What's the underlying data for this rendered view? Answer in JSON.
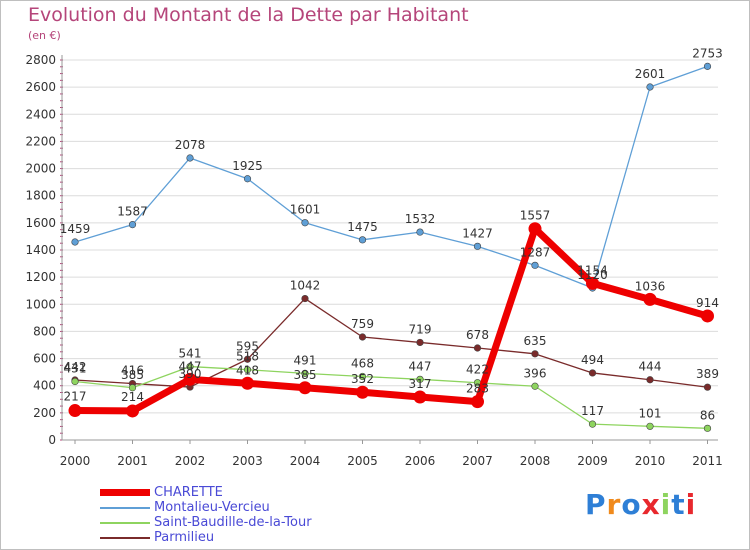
{
  "header": {
    "title": "Evolution du Montant de la Dette par Habitant",
    "unit": "(en €)"
  },
  "brand": {
    "logo_text": "Proxiti"
  },
  "chart_data": {
    "type": "line",
    "title": "Evolution du Montant de la Dette par Habitant",
    "subtitle": "(en €)",
    "xlabel": "",
    "ylabel": "",
    "x": [
      "2000",
      "2001",
      "2002",
      "2003",
      "2004",
      "2005",
      "2006",
      "2007",
      "2008",
      "2009",
      "2010",
      "2011"
    ],
    "ylim": [
      0,
      2800
    ],
    "yticks": [
      0,
      200,
      400,
      600,
      800,
      1000,
      1200,
      1400,
      1600,
      1800,
      2000,
      2200,
      2400,
      2600,
      2800
    ],
    "grid": "horizontal",
    "legend_position": "bottom-left",
    "series": [
      {
        "name": "CHARETTE",
        "color": "#ee0000",
        "values": [
          217,
          214,
          447,
          418,
          385,
          352,
          317,
          283,
          1557,
          1154,
          1036,
          914
        ]
      },
      {
        "name": "Montalieu-Vercieu",
        "color": "#5f9fd6",
        "values": [
          1459,
          1587,
          2078,
          1925,
          1601,
          1475,
          1532,
          1427,
          1287,
          1120,
          2601,
          2753
        ]
      },
      {
        "name": "Saint-Baudille-de-la-Tour",
        "color": "#8ed45f",
        "values": [
          431,
          385,
          541,
          518,
          491,
          468,
          447,
          422,
          396,
          117,
          101,
          86
        ]
      },
      {
        "name": "Parmilieu",
        "color": "#7a2b2b",
        "values": [
          442,
          416,
          390,
          595,
          1042,
          759,
          719,
          678,
          635,
          494,
          444,
          389
        ]
      }
    ]
  }
}
